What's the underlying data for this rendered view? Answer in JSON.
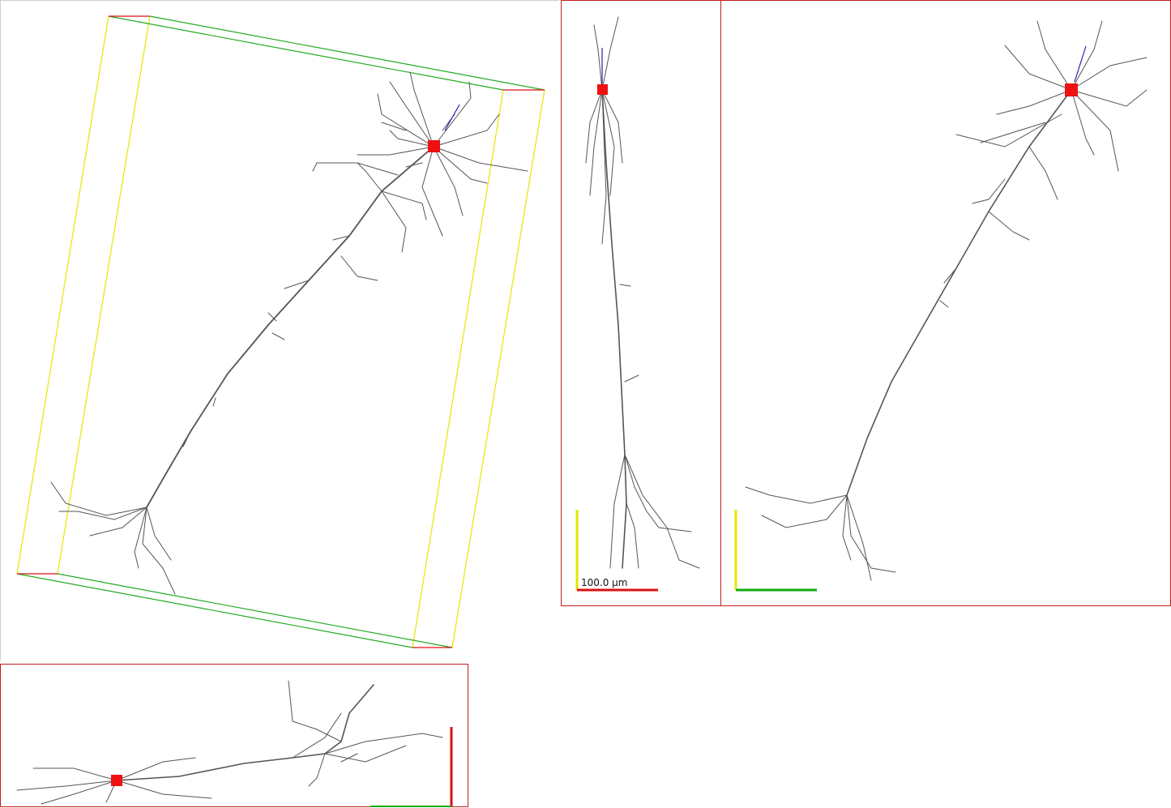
{
  "views": {
    "perspective": {
      "name": "3d-perspective-view"
    },
    "front": {
      "name": "front-orthographic-view",
      "scale_bar_label": "100.0 µm"
    },
    "side": {
      "name": "side-orthographic-view"
    },
    "top": {
      "name": "top-orthographic-view"
    }
  },
  "colors": {
    "neurite": "#555555",
    "soma": "#ee1111",
    "axon": "#2222aa",
    "x_axis": "#dd1111",
    "y_axis": "#eeee00",
    "z_axis": "#11aa11",
    "panel_border": "#c02020"
  }
}
